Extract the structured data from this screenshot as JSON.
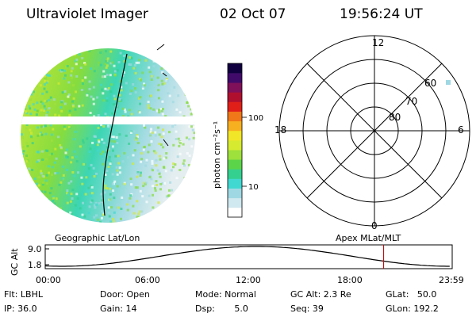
{
  "header": {
    "instrument": "Ultraviolet Imager",
    "date": "02 Oct 07",
    "time": "19:56:24 UT"
  },
  "colorbar": {
    "label": "photon cm⁻²s⁻¹",
    "ticks": [
      {
        "value": 100,
        "label": "100"
      },
      {
        "value": 10,
        "label": "10"
      }
    ],
    "colors": [
      "#ffffff",
      "#d0e8ef",
      "#9fd8e3",
      "#40d8d0",
      "#34d090",
      "#5cd44a",
      "#9ee03c",
      "#d6ea30",
      "#f2e628",
      "#f7b020",
      "#f07818",
      "#e02018",
      "#b0102e",
      "#80105a",
      "#400a6a",
      "#100040"
    ]
  },
  "polar": {
    "mlt_labels": [
      "12",
      "6",
      "0",
      "18"
    ],
    "lat_labels": [
      "60",
      "70",
      "80"
    ]
  },
  "labels": {
    "left_map": "Geographic Lat/Lon",
    "right_map": "Apex  MLat/MLT"
  },
  "timeline": {
    "ylabel": "GC Alt",
    "yticks": [
      "9.0",
      "1.8"
    ],
    "xticks": [
      "00:00",
      "06:00",
      "12:00",
      "18:00",
      "23:59"
    ],
    "current_time": "19:56:24"
  },
  "footer": {
    "flt": "Flt: LBHL",
    "ip": "IP: 36.0",
    "door": "Door: Open",
    "gain": "Gain: 14",
    "mode": "Mode: Normal",
    "dsp": "Dsp:       5.0",
    "gcalt": "GC Alt: 2.3 Re",
    "seq": "Seq: 39",
    "glat": "GLat:   50.0",
    "glon": "GLon: 192.2"
  }
}
